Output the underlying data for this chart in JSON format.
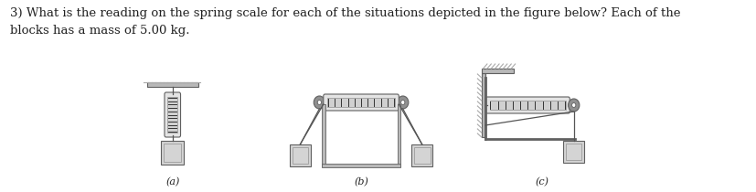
{
  "background_color": "#ffffff",
  "text_color": "#222222",
  "question_text": "3) What is the reading on the spring scale for each of the situations depicted in the figure below? Each of the\nblocks has a mass of 5.00 kg.",
  "question_fontsize": 9.5,
  "label_a": "(a)",
  "label_b": "(b)",
  "label_c": "(c)",
  "figure_width": 8.28,
  "figure_height": 2.1,
  "dpi": 100,
  "gray_edge": "#606060",
  "gray_mid": "#909090",
  "gray_light": "#b8b8b8",
  "gray_block_face": "#d4d4d4",
  "gray_ceil": "#c0c0c0",
  "rope_color": "#555555",
  "scale_face": "#e4e4e4",
  "scale_line": "#444444",
  "coil_color": "#333333",
  "ceil_hatch": "#aaaaaa"
}
